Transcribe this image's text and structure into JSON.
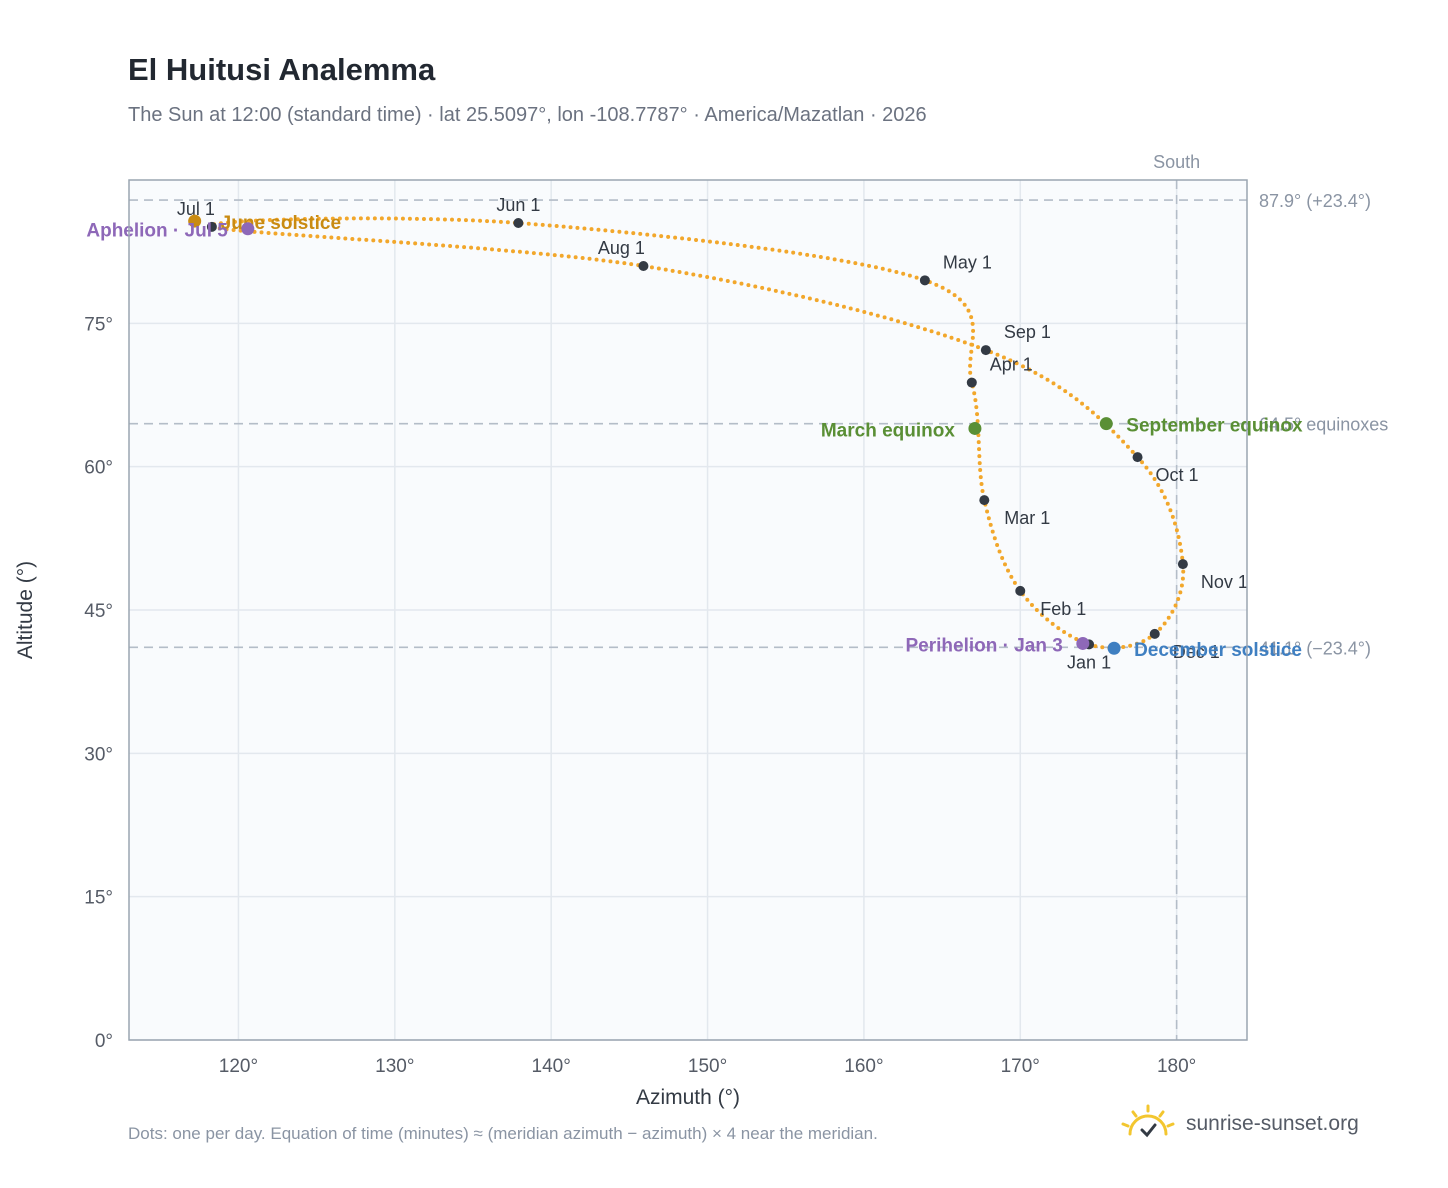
{
  "title": "El Huitusi Analemma",
  "subtitle": "The Sun at 12:00 (standard time) · lat 25.5097°, lon -108.7787° · America/Mazatlan · 2026",
  "footer_note": "Dots: one per day. Equation of time (minutes) ≈ (meridian azimuth − azimuth) × 4 near the meridian.",
  "brand": {
    "name": "sunrise-sunset.org",
    "icon": "sun-logo-icon"
  },
  "colors": {
    "path": "#f2a72b",
    "month": "#333a44",
    "equinox": "#5a8f35",
    "solstice_jun": "#c98b12",
    "solstice_dec": "#3f7fc1",
    "apsis": "#8e68b8",
    "ref_line": "#b4bdc8",
    "grid": "#e3e8ee",
    "plot_bg": "#f9fbfd"
  },
  "chart_data": {
    "type": "scatter",
    "xlabel": "Azimuth (°)",
    "ylabel": "Altitude (°)",
    "xlim": [
      113,
      184.5
    ],
    "ylim": [
      0,
      90
    ],
    "x_ticks": [
      120,
      130,
      140,
      150,
      160,
      170,
      180
    ],
    "x_tick_labels": [
      "120°",
      "130°",
      "140°",
      "150°",
      "160°",
      "170°",
      "180°"
    ],
    "y_ticks": [
      0,
      15,
      30,
      45,
      60,
      75
    ],
    "y_tick_labels": [
      "0°",
      "15°",
      "30°",
      "45°",
      "60°",
      "75°"
    ],
    "grid": true,
    "meridian": {
      "azimuth": 180,
      "label": "South"
    },
    "reference_lines": [
      {
        "altitude": 87.9,
        "label": "87.9° (+23.4°)"
      },
      {
        "altitude": 64.5,
        "label": "64.5° equinoxes"
      },
      {
        "altitude": 41.1,
        "label": "41.1° (−23.4°)"
      }
    ],
    "month_markers": [
      {
        "label": "Jan 1",
        "azimuth": 174.4,
        "altitude": 41.4
      },
      {
        "label": "Feb 1",
        "azimuth": 170.0,
        "altitude": 47.0
      },
      {
        "label": "Mar 1",
        "azimuth": 167.7,
        "altitude": 56.5
      },
      {
        "label": "Apr 1",
        "azimuth": 166.9,
        "altitude": 68.8
      },
      {
        "label": "May 1",
        "azimuth": 163.9,
        "altitude": 79.5
      },
      {
        "label": "Jun 1",
        "azimuth": 137.9,
        "altitude": 85.5
      },
      {
        "label": "Jul 1",
        "azimuth": 118.3,
        "altitude": 85.1
      },
      {
        "label": "Aug 1",
        "azimuth": 145.9,
        "altitude": 81.0
      },
      {
        "label": "Sep 1",
        "azimuth": 167.8,
        "altitude": 72.2
      },
      {
        "label": "Oct 1",
        "azimuth": 177.5,
        "altitude": 61.0
      },
      {
        "label": "Nov 1",
        "azimuth": 180.4,
        "altitude": 49.8
      },
      {
        "label": "Dec 1",
        "azimuth": 178.6,
        "altitude": 42.5
      }
    ],
    "events": [
      {
        "label": "March equinox",
        "azimuth": 167.1,
        "altitude": 64.0,
        "kind": "equinox"
      },
      {
        "label": "September equinox",
        "azimuth": 175.5,
        "altitude": 64.5,
        "kind": "equinox"
      },
      {
        "label": "June solstice",
        "azimuth": 117.2,
        "altitude": 85.7,
        "kind": "solstice_jun"
      },
      {
        "label": "December solstice",
        "azimuth": 176.0,
        "altitude": 41.0,
        "kind": "solstice_dec"
      },
      {
        "label": "Perihelion · Jan 3",
        "azimuth": 174.0,
        "altitude": 41.5,
        "kind": "apsis"
      },
      {
        "label": "Aphelion · Jul 5",
        "azimuth": 120.6,
        "altitude": 84.9,
        "kind": "apsis"
      }
    ]
  }
}
